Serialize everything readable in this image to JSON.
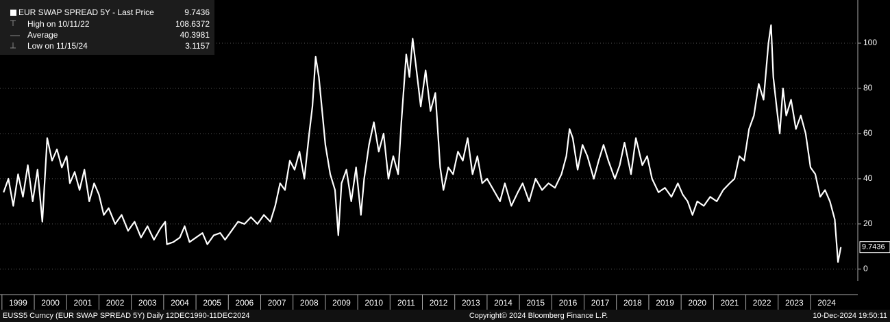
{
  "chart_data": {
    "type": "line",
    "legend": {
      "title": "EUR SWAP SPREAD 5Y - Last Price",
      "last": 9.7436,
      "high_label": "High on 10/11/22",
      "high": 108.6372,
      "avg_label": "Average",
      "avg": 40.3981,
      "low_label": "Low on 11/15/24",
      "low": 3.1157
    },
    "footer": {
      "left": "EUSS5 Curncy (EUR SWAP SPREAD 5Y)  Daily 12DEC1990-11DEC2024",
      "center": "Copyright© 2024 Bloomberg Finance L.P.",
      "right": "10-Dec-2024 19:50:11"
    },
    "x": [
      1999.05,
      1999.2,
      1999.35,
      1999.5,
      1999.65,
      1999.8,
      1999.95,
      2000.1,
      2000.25,
      2000.4,
      2000.55,
      2000.7,
      2000.85,
      2001.0,
      2001.1,
      2001.25,
      2001.4,
      2001.55,
      2001.7,
      2001.85,
      2002.0,
      2002.15,
      2002.3,
      2002.5,
      2002.7,
      2002.9,
      2003.1,
      2003.3,
      2003.5,
      2003.7,
      2003.9,
      2004.05,
      2004.1,
      2004.3,
      2004.5,
      2004.65,
      2004.8,
      2005.0,
      2005.2,
      2005.35,
      2005.55,
      2005.75,
      2005.9,
      2006.1,
      2006.3,
      2006.5,
      2006.7,
      2006.9,
      2007.1,
      2007.3,
      2007.45,
      2007.6,
      2007.75,
      2007.9,
      2008.05,
      2008.2,
      2008.35,
      2008.5,
      2008.6,
      2008.7,
      2008.8,
      2008.9,
      2009.0,
      2009.15,
      2009.3,
      2009.4,
      2009.5,
      2009.65,
      2009.8,
      2009.95,
      2010.1,
      2010.2,
      2010.35,
      2010.5,
      2010.65,
      2010.8,
      2010.95,
      2011.1,
      2011.25,
      2011.35,
      2011.5,
      2011.6,
      2011.7,
      2011.8,
      2011.95,
      2012.1,
      2012.25,
      2012.4,
      2012.55,
      2012.65,
      2012.8,
      2012.95,
      2013.1,
      2013.25,
      2013.4,
      2013.55,
      2013.7,
      2013.85,
      2014.0,
      2014.2,
      2014.4,
      2014.55,
      2014.75,
      2014.95,
      2015.1,
      2015.3,
      2015.5,
      2015.7,
      2015.9,
      2016.1,
      2016.3,
      2016.45,
      2016.55,
      2016.65,
      2016.8,
      2016.95,
      2017.1,
      2017.3,
      2017.45,
      2017.6,
      2017.75,
      2017.95,
      2018.1,
      2018.25,
      2018.45,
      2018.6,
      2018.8,
      2018.95,
      2019.1,
      2019.3,
      2019.5,
      2019.7,
      2019.9,
      2020.05,
      2020.2,
      2020.35,
      2020.5,
      2020.7,
      2020.9,
      2021.1,
      2021.3,
      2021.5,
      2021.65,
      2021.8,
      2021.95,
      2022.1,
      2022.25,
      2022.4,
      2022.55,
      2022.7,
      2022.78,
      2022.85,
      2022.95,
      2023.05,
      2023.15,
      2023.25,
      2023.4,
      2023.55,
      2023.7,
      2023.85,
      2024.0,
      2024.15,
      2024.3,
      2024.45,
      2024.6,
      2024.75,
      2024.85,
      2024.94
    ],
    "series": [
      {
        "name": "EUR SWAP SPREAD 5Y",
        "color": "#ffffff",
        "values": [
          34,
          40,
          28,
          42,
          32,
          46,
          30,
          44,
          21,
          58,
          48,
          53,
          45,
          50,
          38,
          43,
          35,
          44,
          30,
          38,
          33,
          24,
          27,
          20,
          24,
          17,
          21,
          14,
          19,
          13,
          18,
          21,
          11,
          12,
          14,
          19,
          12,
          14,
          16,
          11,
          15,
          16,
          13,
          17,
          21,
          20,
          23,
          20,
          24,
          21,
          28,
          38,
          35,
          48,
          44,
          52,
          40,
          60,
          72,
          94,
          85,
          70,
          55,
          42,
          35,
          15,
          38,
          44,
          30,
          45,
          24,
          40,
          55,
          65,
          52,
          60,
          40,
          50,
          42,
          65,
          95,
          85,
          102,
          90,
          72,
          88,
          70,
          78,
          45,
          35,
          45,
          42,
          52,
          48,
          58,
          42,
          50,
          38,
          40,
          35,
          30,
          38,
          28,
          34,
          38,
          30,
          40,
          35,
          38,
          36,
          42,
          50,
          62,
          58,
          44,
          55,
          50,
          40,
          48,
          55,
          48,
          40,
          46,
          56,
          42,
          58,
          46,
          50,
          40,
          34,
          36,
          32,
          38,
          33,
          30,
          24,
          30,
          28,
          32,
          30,
          35,
          38,
          40,
          50,
          48,
          62,
          68,
          82,
          75,
          100,
          108,
          85,
          72,
          60,
          80,
          68,
          75,
          62,
          68,
          60,
          45,
          42,
          32,
          35,
          30,
          22,
          3.1157,
          9.7436
        ]
      }
    ],
    "xlim": [
      1998.94,
      2025.42
    ],
    "xticks": [
      1999,
      2000,
      2001,
      2002,
      2003,
      2004,
      2005,
      2006,
      2007,
      2008,
      2009,
      2010,
      2011,
      2012,
      2013,
      2014,
      2015,
      2016,
      2017,
      2018,
      2019,
      2020,
      2021,
      2022,
      2023,
      2024
    ],
    "ylim": [
      -5.2,
      119.1
    ],
    "yticks": [
      0,
      20,
      40,
      60,
      80,
      100
    ],
    "grid": true
  }
}
